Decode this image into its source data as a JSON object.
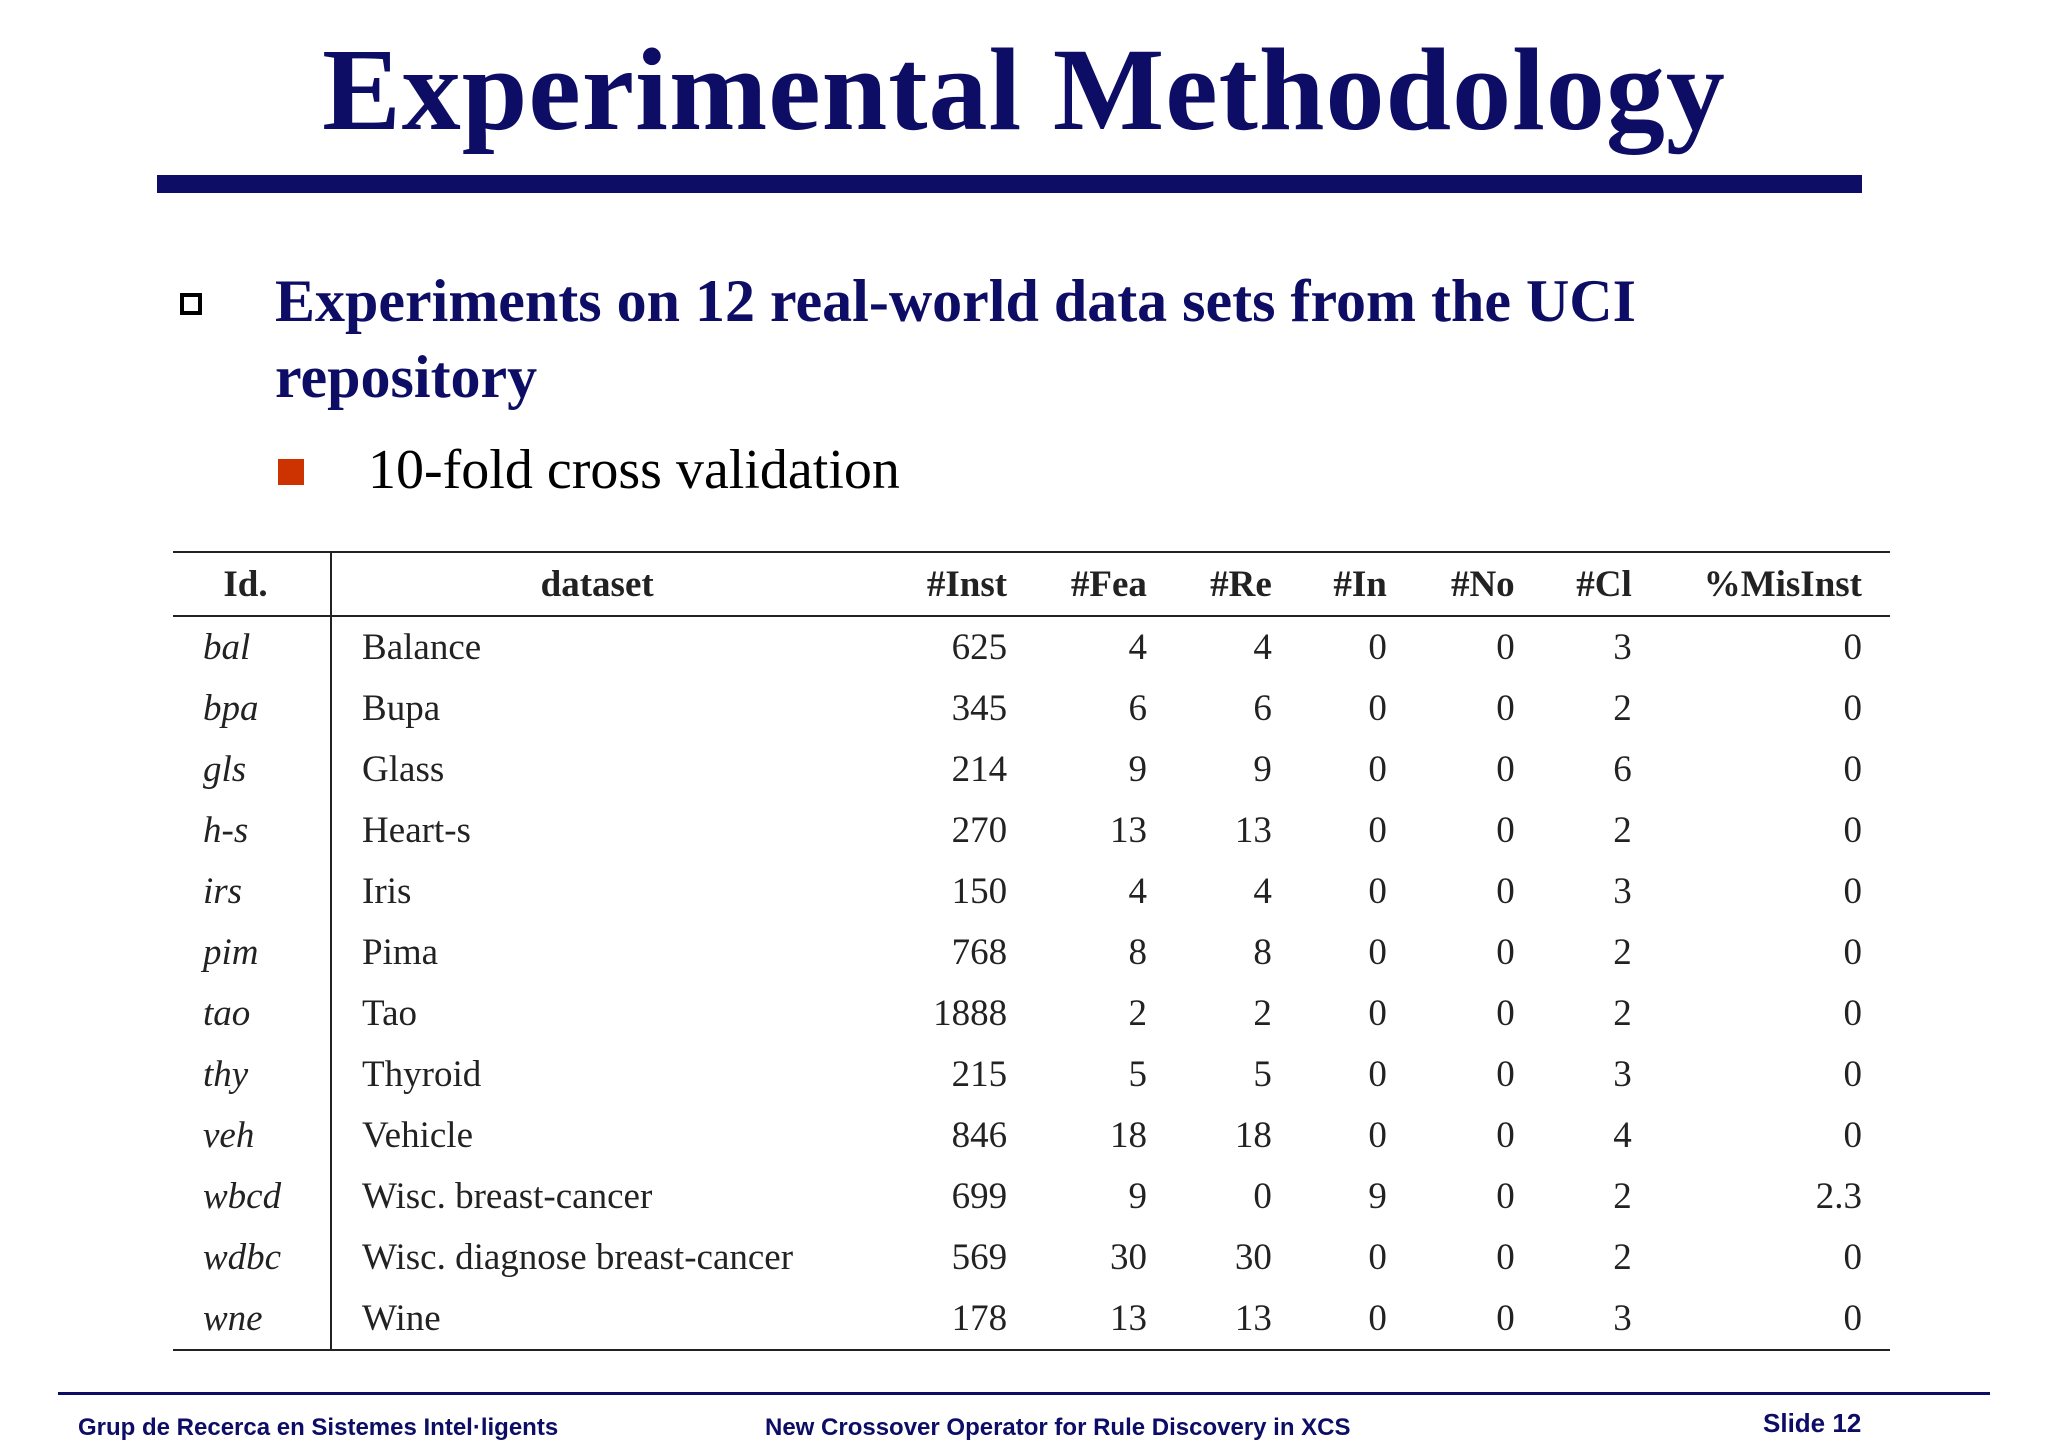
{
  "slide": {
    "title": "Experimental Methodology",
    "bullet_main": "Experiments on 12 real-world data sets from the UCI repository",
    "bullet_sub": "10-fold cross validation"
  },
  "table": {
    "headers": [
      "Id.",
      "dataset",
      "#Inst",
      "#Fea",
      "#Re",
      "#In",
      "#No",
      "#Cl",
      "%MisInst"
    ],
    "rows": [
      [
        "bal",
        "Balance",
        "625",
        "4",
        "4",
        "0",
        "0",
        "3",
        "0"
      ],
      [
        "bpa",
        "Bupa",
        "345",
        "6",
        "6",
        "0",
        "0",
        "2",
        "0"
      ],
      [
        "gls",
        "Glass",
        "214",
        "9",
        "9",
        "0",
        "0",
        "6",
        "0"
      ],
      [
        "h-s",
        "Heart-s",
        "270",
        "13",
        "13",
        "0",
        "0",
        "2",
        "0"
      ],
      [
        "irs",
        "Iris",
        "150",
        "4",
        "4",
        "0",
        "0",
        "3",
        "0"
      ],
      [
        "pim",
        "Pima",
        "768",
        "8",
        "8",
        "0",
        "0",
        "2",
        "0"
      ],
      [
        "tao",
        "Tao",
        "1888",
        "2",
        "2",
        "0",
        "0",
        "2",
        "0"
      ],
      [
        "thy",
        "Thyroid",
        "215",
        "5",
        "5",
        "0",
        "0",
        "3",
        "0"
      ],
      [
        "veh",
        "Vehicle",
        "846",
        "18",
        "18",
        "0",
        "0",
        "4",
        "0"
      ],
      [
        "wbcd",
        "Wisc. breast-cancer",
        "699",
        "9",
        "0",
        "9",
        "0",
        "2",
        "2.3"
      ],
      [
        "wdbc",
        "Wisc. diagnose breast-cancer",
        "569",
        "30",
        "30",
        "0",
        "0",
        "2",
        "0"
      ],
      [
        "wne",
        "Wine",
        "178",
        "13",
        "13",
        "0",
        "0",
        "3",
        "0"
      ]
    ]
  },
  "footer": {
    "left": "Grup de Recerca en Sistemes Intel·ligents",
    "center": "New Crossover Operator for Rule Discovery in XCS",
    "right": "Slide 12"
  },
  "colors": {
    "title": "#0d0d66",
    "sub_bullet": "#cc3300"
  }
}
